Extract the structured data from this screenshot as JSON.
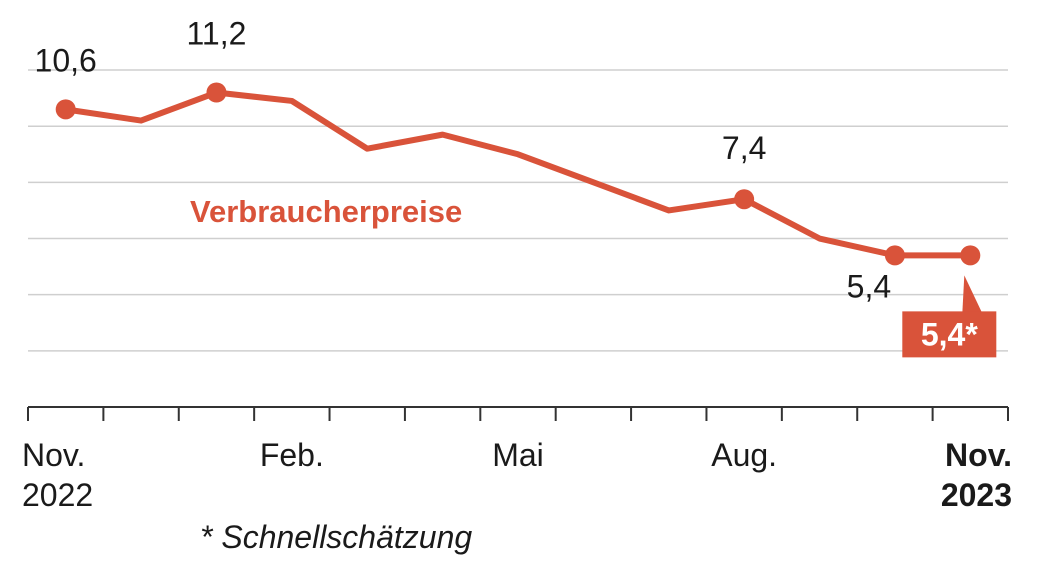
{
  "chart_data": {
    "type": "line",
    "categories": [
      "Nov.\n2022",
      null,
      null,
      "Feb.",
      null,
      null,
      "Mai",
      null,
      null,
      "Aug.",
      null,
      null,
      "Nov.\n2023"
    ],
    "series": [
      {
        "name": "Verbraucherpreise",
        "color": "#d9533a",
        "values": [
          10.6,
          10.2,
          11.2,
          10.9,
          9.2,
          9.7,
          9.0,
          8.0,
          7.0,
          7.4,
          6.0,
          5.4,
          5.4
        ],
        "value_labels": [
          "10,6",
          null,
          "11,2",
          null,
          null,
          null,
          null,
          null,
          null,
          "7,4",
          null,
          "5,4",
          "5,4*"
        ]
      }
    ],
    "ylim": [
      0,
      12.5
    ],
    "yticks": [
      2,
      4,
      6,
      8,
      10,
      12
    ],
    "grid": true,
    "note": "* Schnellschätzung"
  }
}
